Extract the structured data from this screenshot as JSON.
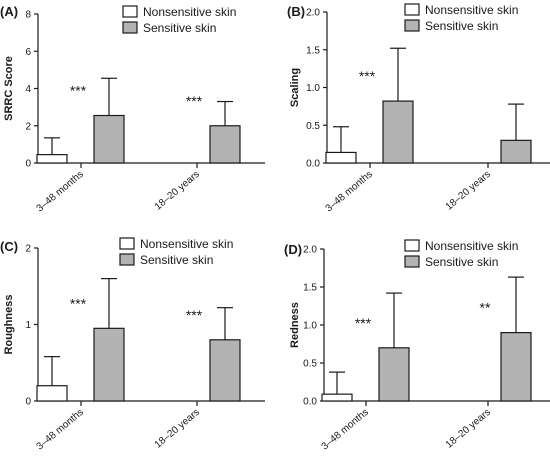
{
  "colors": {
    "nonsensitive_fill": "#ffffff",
    "sensitive_fill": "#b3b3b3",
    "stroke": "#1a1a1a"
  },
  "chart_data": [
    {
      "type": "bar",
      "panel_label": "(A)",
      "ylabel": "SRRC Score",
      "ylim": [
        0,
        8
      ],
      "yticks": [
        "0",
        "2",
        "4",
        "6",
        "8"
      ],
      "tick_values": [
        0,
        2,
        4,
        6,
        8
      ],
      "categories": [
        "3–48 months",
        "18–20 years"
      ],
      "series": [
        {
          "name": "Nonsensitive skin",
          "values": [
            0.45,
            null
          ],
          "errors": [
            0.9,
            null
          ]
        },
        {
          "name": "Sensitive skin",
          "values": [
            2.55,
            2.0
          ],
          "errors": [
            2.0,
            1.3
          ]
        }
      ],
      "significance": [
        "***",
        "***"
      ],
      "legend": {
        "position": "top-right",
        "entries": [
          "Nonsensitive skin",
          "Sensitive skin"
        ]
      },
      "grid": false
    },
    {
      "type": "bar",
      "panel_label": "(B)",
      "ylabel": "Scaling",
      "ylim": [
        0,
        2.0
      ],
      "yticks": [
        "0.0",
        "0.5",
        "1.0",
        "1.5",
        "2.0"
      ],
      "tick_values": [
        0,
        0.5,
        1.0,
        1.5,
        2.0
      ],
      "categories": [
        "3–48 months",
        "18–20 years"
      ],
      "series": [
        {
          "name": "Nonsensitive skin",
          "values": [
            0.14,
            null
          ],
          "errors": [
            0.34,
            null
          ]
        },
        {
          "name": "Sensitive skin",
          "values": [
            0.82,
            0.3
          ],
          "errors": [
            0.7,
            0.48
          ]
        }
      ],
      "significance": [
        "***",
        ""
      ],
      "legend": {
        "position": "top-right",
        "entries": [
          "Nonsensitive skin",
          "Sensitive skin"
        ]
      },
      "grid": false
    },
    {
      "type": "bar",
      "panel_label": "(C)",
      "ylabel": "Roughness",
      "ylim": [
        0,
        2
      ],
      "yticks": [
        "0",
        "1",
        "2"
      ],
      "tick_values": [
        0,
        1,
        2
      ],
      "categories": [
        "3–48 months",
        "18–20 years"
      ],
      "series": [
        {
          "name": "Nonsensitive skin",
          "values": [
            0.2,
            null
          ],
          "errors": [
            0.38,
            null
          ]
        },
        {
          "name": "Sensitive skin",
          "values": [
            0.95,
            0.8
          ],
          "errors": [
            0.65,
            0.42
          ]
        }
      ],
      "significance": [
        "***",
        "***"
      ],
      "legend": {
        "position": "top-right",
        "entries": [
          "Nonsensitive skin",
          "Sensitive skin"
        ]
      },
      "grid": false
    },
    {
      "type": "bar",
      "panel_label": "(D)",
      "ylabel": "Redness",
      "ylim": [
        0,
        2.0
      ],
      "yticks": [
        "0.0",
        "0.5",
        "1.0",
        "1.5",
        "2.0"
      ],
      "tick_values": [
        0,
        0.5,
        1.0,
        1.5,
        2.0
      ],
      "categories": [
        "3–48 months",
        "18–20 years"
      ],
      "series": [
        {
          "name": "Nonsensitive skin",
          "values": [
            0.09,
            null
          ],
          "errors": [
            0.29,
            null
          ]
        },
        {
          "name": "Sensitive skin",
          "values": [
            0.7,
            0.9
          ],
          "errors": [
            0.72,
            0.73
          ]
        }
      ],
      "significance": [
        "***",
        "**"
      ],
      "legend": {
        "position": "top-right",
        "entries": [
          "Nonsensitive skin",
          "Sensitive skin"
        ]
      },
      "grid": false
    }
  ]
}
